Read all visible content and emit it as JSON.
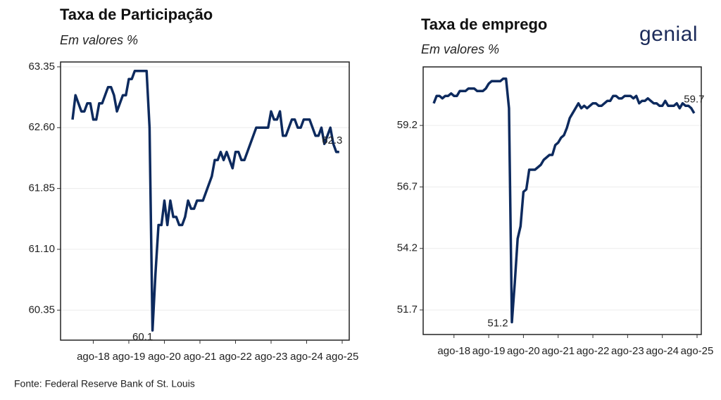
{
  "chart_data": [
    {
      "type": "line",
      "title": "Taxa de Participação",
      "subtitle": "Em valores %",
      "categories": [
        null,
        null,
        null,
        null,
        null,
        null,
        null,
        "ago-18",
        null,
        null,
        null,
        null,
        null,
        null,
        null,
        null,
        null,
        null,
        null,
        "ago-19",
        null,
        null,
        null,
        null,
        null,
        null,
        null,
        null,
        null,
        null,
        null,
        "ago-20",
        null,
        null,
        null,
        null,
        null,
        null,
        null,
        null,
        null,
        null,
        null,
        "ago-21",
        null,
        null,
        null,
        null,
        null,
        null,
        null,
        null,
        null,
        null,
        null,
        "ago-22",
        null,
        null,
        null,
        null,
        null,
        null,
        null,
        null,
        null,
        null,
        null,
        "ago-23",
        null,
        null,
        null,
        null,
        null,
        null,
        null,
        null,
        null,
        null,
        null,
        "ago-24",
        null,
        null,
        null,
        null,
        null,
        null,
        null,
        null,
        null,
        null,
        null,
        "ago-25"
      ],
      "series": [
        {
          "name": "Taxa de Participação",
          "color": "#0d2a5e",
          "values": [
            62.7,
            63.0,
            62.9,
            62.8,
            62.8,
            62.9,
            62.9,
            62.7,
            62.7,
            62.9,
            62.9,
            63.0,
            63.1,
            63.1,
            63.0,
            62.8,
            62.9,
            63.0,
            63.0,
            63.2,
            63.2,
            63.3,
            63.3,
            63.3,
            63.3,
            63.3,
            62.6,
            60.1,
            60.8,
            61.4,
            61.4,
            61.7,
            61.4,
            61.7,
            61.5,
            61.5,
            61.4,
            61.4,
            61.5,
            61.7,
            61.6,
            61.6,
            61.7,
            61.7,
            61.7,
            61.8,
            61.9,
            62.0,
            62.2,
            62.2,
            62.3,
            62.2,
            62.3,
            62.2,
            62.1,
            62.3,
            62.3,
            62.2,
            62.2,
            62.3,
            62.4,
            62.5,
            62.6,
            62.6,
            62.6,
            62.6,
            62.6,
            62.8,
            62.7,
            62.7,
            62.8,
            62.5,
            62.5,
            62.6,
            62.7,
            62.7,
            62.6,
            62.6,
            62.7,
            62.7,
            62.7,
            62.6,
            62.5,
            62.5,
            62.6,
            62.4,
            62.5,
            62.6,
            62.4,
            62.3,
            62.3,
            null
          ]
        }
      ],
      "ylim": [
        59.98,
        63.41
      ],
      "yticks": [
        60.35,
        {
          "value": 61.1,
          "label": "61.10"
        },
        61.85,
        {
          "value": 62.6,
          "label": "62.60"
        },
        63.35
      ],
      "grid": true
    },
    {
      "type": "line",
      "title": "Taxa de emprego",
      "subtitle": "Em valores %",
      "categories": [
        null,
        null,
        null,
        null,
        null,
        null,
        null,
        "ago-18",
        null,
        null,
        null,
        null,
        null,
        null,
        null,
        null,
        null,
        null,
        null,
        "ago-19",
        null,
        null,
        null,
        null,
        null,
        null,
        null,
        null,
        null,
        null,
        null,
        "ago-20",
        null,
        null,
        null,
        null,
        null,
        null,
        null,
        null,
        null,
        null,
        null,
        "ago-21",
        null,
        null,
        null,
        null,
        null,
        null,
        null,
        null,
        null,
        null,
        null,
        "ago-22",
        null,
        null,
        null,
        null,
        null,
        null,
        null,
        null,
        null,
        null,
        null,
        "ago-23",
        null,
        null,
        null,
        null,
        null,
        null,
        null,
        null,
        null,
        null,
        null,
        "ago-24",
        null,
        null,
        null,
        null,
        null,
        null,
        null,
        null,
        null,
        null,
        null,
        "ago-25"
      ],
      "series": [
        {
          "name": "Taxa de emprego",
          "color": "#0d2a5e",
          "values": [
            60.1,
            60.4,
            60.4,
            60.3,
            60.4,
            60.4,
            60.5,
            60.4,
            60.4,
            60.6,
            60.6,
            60.6,
            60.7,
            60.7,
            60.7,
            60.6,
            60.6,
            60.6,
            60.7,
            60.9,
            61.0,
            61.0,
            61.0,
            61.0,
            61.1,
            61.1,
            59.9,
            51.2,
            52.8,
            54.6,
            55.1,
            56.5,
            56.6,
            57.4,
            57.4,
            57.4,
            57.5,
            57.6,
            57.8,
            57.9,
            58.0,
            58.0,
            58.4,
            58.5,
            58.7,
            58.8,
            59.1,
            59.5,
            59.7,
            59.9,
            60.1,
            59.9,
            60.0,
            59.9,
            60.0,
            60.1,
            60.1,
            60.0,
            60.0,
            60.1,
            60.2,
            60.2,
            60.4,
            60.4,
            60.3,
            60.3,
            60.4,
            60.4,
            60.4,
            60.3,
            60.4,
            60.1,
            60.2,
            60.2,
            60.3,
            60.2,
            60.1,
            60.1,
            60.0,
            60.0,
            60.2,
            60.0,
            60.0,
            60.0,
            60.1,
            59.9,
            60.1,
            60.0,
            60.0,
            59.9,
            59.7,
            null
          ]
        }
      ],
      "ylim": [
        50.7,
        61.58
      ],
      "yticks": [
        51.7,
        54.2,
        56.7,
        59.2
      ],
      "grid": true
    }
  ],
  "logo": "genial",
  "source": "Fonte: Federal Reserve Bank of St. Louis"
}
